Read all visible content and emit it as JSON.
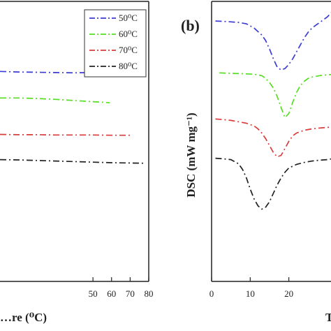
{
  "chart_data": [
    {
      "type": "line",
      "panel_label": "",
      "xlabel": "…re (⁰C)",
      "ylabel": "",
      "xlim": [
        0,
        80
      ],
      "x_ticks": [
        {
          "v": 50,
          "label": "50"
        },
        {
          "v": 60,
          "label": "60"
        },
        {
          "v": 70,
          "label": "70"
        },
        {
          "v": 80,
          "label": "80"
        }
      ],
      "grid": false,
      "legend": {
        "position": "top-right",
        "entries": [
          {
            "label": "50⁰C",
            "color": "#3b3bd6"
          },
          {
            "label": "60⁰C",
            "color": "#55dd22"
          },
          {
            "label": "70⁰C",
            "color": "#d93a3a"
          },
          {
            "label": "80⁰C",
            "color": "#222222"
          }
        ]
      },
      "series": [
        {
          "color": "#3b3bd6",
          "x": [
            0,
            10,
            20,
            30,
            40,
            48,
            52
          ],
          "y": [
            0.75,
            0.748,
            0.747,
            0.746,
            0.745,
            0.746,
            0.745
          ]
        },
        {
          "color": "#55dd22",
          "x": [
            0,
            10,
            20,
            30,
            40,
            50,
            55,
            59
          ],
          "y": [
            0.655,
            0.655,
            0.653,
            0.65,
            0.646,
            0.642,
            0.64,
            0.638
          ]
        },
        {
          "color": "#d93a3a",
          "x": [
            0,
            10,
            20,
            30,
            40,
            50,
            60,
            70
          ],
          "y": [
            0.525,
            0.524,
            0.524,
            0.523,
            0.523,
            0.523,
            0.522,
            0.522
          ]
        },
        {
          "color": "#222222",
          "x": [
            0,
            10,
            20,
            30,
            40,
            50,
            60,
            70,
            78
          ],
          "y": [
            0.435,
            0.434,
            0.432,
            0.43,
            0.428,
            0.426,
            0.424,
            0.423,
            0.422
          ]
        }
      ]
    },
    {
      "type": "line",
      "panel_label": "(b)",
      "ylabel": "DSC (mW mg⁻¹)",
      "xlabel": "T",
      "xlim": [
        0,
        32
      ],
      "x_ticks": [
        {
          "v": 0,
          "label": "0"
        },
        {
          "v": 10,
          "label": "10"
        },
        {
          "v": 20,
          "label": "20"
        }
      ],
      "grid": false,
      "series": [
        {
          "color": "#3b3bd6",
          "x": [
            1,
            4,
            7,
            9,
            11,
            13,
            14,
            15,
            16,
            17,
            18,
            19,
            20,
            21,
            22,
            23,
            24,
            25,
            26,
            27,
            28,
            29,
            30,
            31,
            32
          ],
          "y": [
            0.93,
            0.928,
            0.925,
            0.92,
            0.905,
            0.88,
            0.86,
            0.83,
            0.795,
            0.765,
            0.755,
            0.76,
            0.775,
            0.795,
            0.82,
            0.845,
            0.87,
            0.89,
            0.905,
            0.915,
            0.925,
            0.935,
            0.945,
            0.96,
            0.99
          ]
        },
        {
          "color": "#55dd22",
          "x": [
            2,
            5,
            8,
            11,
            13,
            14,
            15,
            16,
            17,
            18,
            19,
            20,
            21,
            22,
            23,
            24,
            25,
            26,
            28,
            30,
            32
          ],
          "y": [
            0.745,
            0.743,
            0.742,
            0.74,
            0.735,
            0.725,
            0.71,
            0.69,
            0.66,
            0.62,
            0.585,
            0.6,
            0.64,
            0.675,
            0.7,
            0.715,
            0.725,
            0.73,
            0.735,
            0.738,
            0.74
          ]
        },
        {
          "color": "#d93a3a",
          "x": [
            1,
            3,
            5,
            7,
            9,
            11,
            12,
            13,
            14,
            15,
            16,
            17,
            18,
            19,
            20,
            21,
            22,
            24,
            26,
            28,
            30,
            32
          ],
          "y": [
            0.58,
            0.578,
            0.575,
            0.57,
            0.565,
            0.555,
            0.545,
            0.53,
            0.51,
            0.485,
            0.46,
            0.445,
            0.45,
            0.475,
            0.5,
            0.52,
            0.53,
            0.54,
            0.545,
            0.548,
            0.55,
            0.552
          ]
        },
        {
          "color": "#222222",
          "x": [
            1,
            3,
            5,
            7,
            8,
            9,
            10,
            11,
            12,
            13,
            14,
            15,
            16,
            17,
            18,
            19,
            20,
            22,
            24,
            26,
            28,
            30,
            32
          ],
          "y": [
            0.44,
            0.438,
            0.435,
            0.42,
            0.4,
            0.37,
            0.33,
            0.295,
            0.27,
            0.258,
            0.265,
            0.285,
            0.315,
            0.345,
            0.37,
            0.39,
            0.405,
            0.418,
            0.425,
            0.43,
            0.433,
            0.435,
            0.44
          ]
        }
      ]
    }
  ]
}
